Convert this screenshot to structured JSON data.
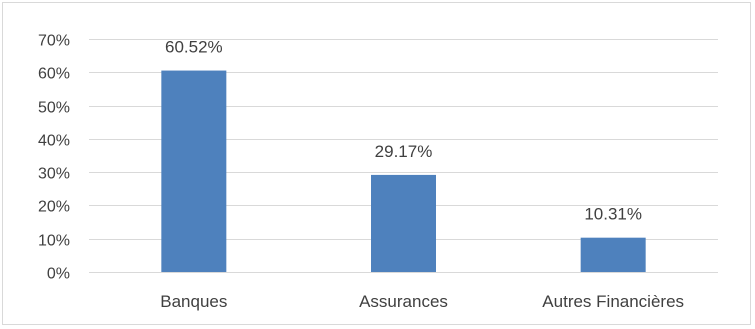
{
  "chart_data": {
    "type": "bar",
    "categories": [
      "Banques",
      "Assurances",
      "Autres Financières"
    ],
    "values": [
      0.6052,
      0.2917,
      0.1031
    ],
    "data_labels": [
      "60.52%",
      "29.17%",
      "10.31%"
    ],
    "y_ticks": [
      "0%",
      "10%",
      "20%",
      "30%",
      "40%",
      "50%",
      "60%",
      "70%"
    ],
    "ylim": [
      0,
      0.7
    ],
    "grid": true,
    "legend": "none",
    "colors": {
      "bar": "#4e81bd"
    }
  }
}
